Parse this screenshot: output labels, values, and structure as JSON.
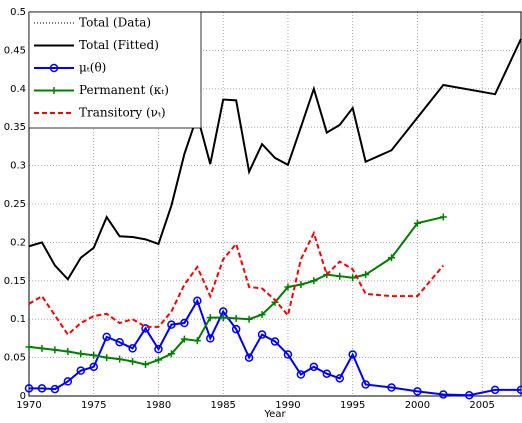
{
  "chart_data": {
    "type": "line",
    "xlabel": "Year",
    "xlim": [
      1970,
      2008
    ],
    "xticks": [
      1970,
      1975,
      1980,
      1985,
      1990,
      1995,
      2000,
      2005
    ],
    "ylim": [
      0,
      0.5
    ],
    "yticks": [
      0,
      0.05,
      0.1,
      0.15,
      0.2,
      0.25,
      0.3,
      0.35,
      0.4,
      0.45,
      0.5
    ],
    "grid": true,
    "legend": "upper-left",
    "series": [
      {
        "name": "Total (Data)",
        "color": "#000000",
        "dash": "dotted",
        "marker": "none",
        "x": [
          1970,
          1971,
          1972,
          1973,
          1974,
          1975,
          1976,
          1977,
          1978,
          1979,
          1980,
          1981,
          1982,
          1983,
          1984,
          1985,
          1986,
          1987,
          1988,
          1989,
          1990,
          1991,
          1992,
          1993,
          1994,
          1995,
          1996,
          1998,
          2002,
          2006,
          2008
        ],
        "values": [
          0.195,
          0.2,
          0.17,
          0.152,
          0.18,
          0.193,
          0.233,
          0.208,
          0.207,
          0.204,
          0.198,
          0.248,
          0.315,
          0.365,
          0.302,
          0.386,
          0.385,
          0.292,
          0.328,
          0.31,
          0.301,
          0.35,
          0.4,
          0.343,
          0.353,
          0.375,
          0.305,
          0.32,
          0.405,
          0.393,
          0.465
        ]
      },
      {
        "name": "Total (Fitted)",
        "color": "#000000",
        "dash": "solid",
        "marker": "none",
        "x": [
          1970,
          1971,
          1972,
          1973,
          1974,
          1975,
          1976,
          1977,
          1978,
          1979,
          1980,
          1981,
          1982,
          1983,
          1984,
          1985,
          1986,
          1987,
          1988,
          1989,
          1990,
          1991,
          1992,
          1993,
          1994,
          1995,
          1996,
          1998,
          2002,
          2006,
          2008
        ],
        "values": [
          0.195,
          0.2,
          0.17,
          0.152,
          0.18,
          0.193,
          0.233,
          0.208,
          0.207,
          0.204,
          0.198,
          0.248,
          0.315,
          0.365,
          0.302,
          0.386,
          0.385,
          0.292,
          0.328,
          0.31,
          0.301,
          0.35,
          0.4,
          0.343,
          0.353,
          0.375,
          0.305,
          0.32,
          0.405,
          0.393,
          0.465
        ]
      },
      {
        "name": "μₜ(θ)",
        "color": "#0000ff",
        "dash": "solid",
        "marker": "circle",
        "x": [
          1970,
          1971,
          1972,
          1973,
          1974,
          1975,
          1976,
          1977,
          1978,
          1979,
          1980,
          1981,
          1982,
          1983,
          1984,
          1985,
          1986,
          1987,
          1988,
          1989,
          1990,
          1991,
          1992,
          1993,
          1994,
          1995,
          1996,
          1998,
          2000,
          2002,
          2004,
          2006,
          2008
        ],
        "values": [
          0.01,
          0.01,
          0.009,
          0.019,
          0.033,
          0.038,
          0.077,
          0.07,
          0.062,
          0.088,
          0.061,
          0.093,
          0.095,
          0.124,
          0.075,
          0.11,
          0.087,
          0.05,
          0.08,
          0.071,
          0.054,
          0.028,
          0.038,
          0.029,
          0.023,
          0.054,
          0.015,
          0.011,
          0.006,
          0.002,
          0.001,
          0.008,
          0.008
        ]
      },
      {
        "name": "Permanent (κₜ)",
        "color": "#008000",
        "dash": "solid",
        "marker": "plus",
        "x": [
          1970,
          1971,
          1972,
          1973,
          1974,
          1975,
          1976,
          1977,
          1978,
          1979,
          1980,
          1981,
          1982,
          1983,
          1984,
          1985,
          1986,
          1987,
          1988,
          1989,
          1990,
          1991,
          1992,
          1993,
          1994,
          1995,
          1996,
          1998,
          2000,
          2002
        ],
        "values": [
          0.064,
          0.062,
          0.06,
          0.058,
          0.055,
          0.053,
          0.05,
          0.048,
          0.045,
          0.041,
          0.047,
          0.055,
          0.074,
          0.072,
          0.102,
          0.102,
          0.101,
          0.1,
          0.106,
          0.122,
          0.142,
          0.145,
          0.15,
          0.158,
          0.156,
          0.154,
          0.158,
          0.18,
          0.225,
          0.233
        ]
      },
      {
        "name": "Transitory (νₜ)",
        "color": "#ff0000",
        "dash": "dashed",
        "marker": "none",
        "x": [
          1970,
          1971,
          1972,
          1973,
          1974,
          1975,
          1976,
          1977,
          1978,
          1979,
          1980,
          1981,
          1982,
          1983,
          1984,
          1985,
          1986,
          1987,
          1988,
          1989,
          1990,
          1991,
          1992,
          1993,
          1994,
          1995,
          1996,
          1998,
          2000,
          2002
        ],
        "values": [
          0.12,
          0.13,
          0.105,
          0.08,
          0.095,
          0.104,
          0.107,
          0.095,
          0.1,
          0.09,
          0.09,
          0.11,
          0.145,
          0.168,
          0.13,
          0.178,
          0.198,
          0.142,
          0.14,
          0.125,
          0.105,
          0.178,
          0.212,
          0.158,
          0.175,
          0.165,
          0.133,
          0.13,
          0.13,
          0.17
        ]
      }
    ]
  }
}
